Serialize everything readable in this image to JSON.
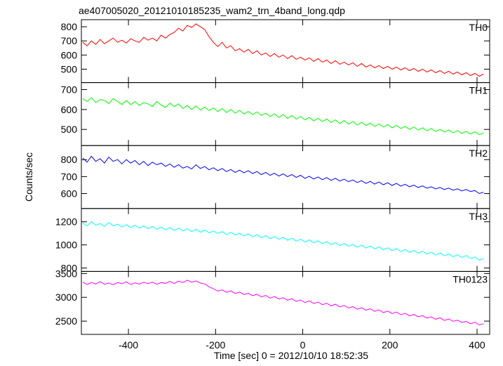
{
  "chart_data": {
    "type": "line",
    "title": "ae407005020_20121010185235_wam2_trn_4band_long.qdp",
    "xlabel": "Time [sec] 0 = 2012/10/10 18:52:35",
    "ylabel": "Counts/sec",
    "xlim": [
      -508,
      429
    ],
    "xticks": [
      -400,
      -200,
      0,
      200,
      400
    ],
    "x": [
      -505,
      -495,
      -485,
      -475,
      -465,
      -455,
      -445,
      -435,
      -425,
      -415,
      -405,
      -395,
      -385,
      -375,
      -365,
      -355,
      -345,
      -335,
      -325,
      -315,
      -305,
      -295,
      -285,
      -275,
      -265,
      -255,
      -245,
      -235,
      -225,
      -215,
      -205,
      -195,
      -185,
      -175,
      -165,
      -155,
      -145,
      -135,
      -125,
      -115,
      -105,
      -95,
      -85,
      -75,
      -65,
      -55,
      -45,
      -35,
      -25,
      -15,
      -5,
      5,
      15,
      25,
      35,
      45,
      55,
      65,
      75,
      85,
      95,
      105,
      115,
      125,
      135,
      145,
      155,
      165,
      175,
      185,
      195,
      205,
      215,
      225,
      235,
      245,
      255,
      265,
      275,
      285,
      295,
      305,
      315,
      325,
      335,
      345,
      355,
      365,
      375,
      385,
      395,
      405,
      415
    ],
    "panels": [
      {
        "name": "TH0",
        "color": "#ff0000",
        "ylim": [
          405,
          850
        ],
        "yticks": [
          500,
          600,
          700,
          800
        ],
        "values": [
          690,
          665,
          700,
          675,
          710,
          680,
          700,
          720,
          690,
          705,
          685,
          715,
          700,
          690,
          725,
          705,
          720,
          700,
          740,
          720,
          745,
          760,
          790,
          770,
          810,
          795,
          820,
          800,
          780,
          730,
          690,
          660,
          690,
          650,
          665,
          630,
          645,
          620,
          640,
          610,
          630,
          600,
          615,
          590,
          610,
          585,
          600,
          575,
          595,
          570,
          585,
          565,
          580,
          555,
          575,
          550,
          565,
          540,
          560,
          535,
          550,
          530,
          545,
          520,
          540,
          515,
          530,
          510,
          525,
          505,
          520,
          500,
          515,
          495,
          510,
          490,
          505,
          485,
          500,
          480,
          495,
          475,
          490,
          470,
          485,
          465,
          480,
          460,
          475,
          455,
          470,
          450,
          465
        ]
      },
      {
        "name": "TH1",
        "color": "#00ff00",
        "ylim": [
          419,
          735
        ],
        "yticks": [
          500,
          600,
          700
        ],
        "values": [
          655,
          640,
          660,
          635,
          650,
          645,
          630,
          655,
          640,
          625,
          645,
          625,
          640,
          620,
          635,
          628,
          615,
          640,
          622,
          610,
          632,
          615,
          628,
          605,
          620,
          600,
          618,
          597,
          612,
          595,
          608,
          590,
          605,
          585,
          600,
          582,
          596,
          578,
          590,
          575,
          588,
          570,
          582,
          565,
          578,
          560,
          575,
          555,
          570,
          552,
          565,
          548,
          560,
          543,
          556,
          540,
          552,
          535,
          548,
          530,
          545,
          527,
          540,
          522,
          536,
          520,
          532,
          515,
          528,
          512,
          525,
          508,
          520,
          505,
          515,
          500,
          512,
          497,
          508,
          493,
          505,
          490,
          500,
          487,
          497,
          483,
          494,
          480,
          490,
          477,
          488,
          474,
          482
        ]
      },
      {
        "name": "TH2",
        "color": "#0000ff",
        "ylim": [
          512,
          883
        ],
        "yticks": [
          600,
          700,
          800
        ],
        "values": [
          810,
          785,
          820,
          790,
          805,
          780,
          815,
          790,
          800,
          775,
          800,
          780,
          795,
          770,
          790,
          765,
          785,
          770,
          780,
          760,
          775,
          755,
          770,
          750,
          760,
          745,
          770,
          748,
          760,
          740,
          752,
          735,
          748,
          730,
          742,
          725,
          738,
          722,
          735,
          718,
          730,
          712,
          725,
          708,
          720,
          703,
          716,
          700,
          712,
          695,
          708,
          690,
          702,
          686,
          698,
          682,
          694,
          678,
          690,
          674,
          685,
          670,
          680,
          665,
          676,
          660,
          672,
          656,
          668,
          652,
          664,
          648,
          660,
          644,
          655,
          640,
          650,
          636,
          645,
          632,
          640,
          628,
          636,
          624,
          632,
          620,
          628,
          616,
          624,
          612,
          618,
          600,
          608
        ]
      },
      {
        "name": "TH3",
        "color": "#00ffff",
        "ylim": [
          770,
          1315
        ],
        "yticks": [
          800,
          1000,
          1200
        ],
        "values": [
          1190,
          1165,
          1200,
          1170,
          1185,
          1160,
          1195,
          1165,
          1180,
          1155,
          1175,
          1150,
          1170,
          1145,
          1165,
          1140,
          1160,
          1135,
          1155,
          1130,
          1150,
          1125,
          1145,
          1120,
          1140,
          1115,
          1135,
          1110,
          1128,
          1105,
          1120,
          1098,
          1115,
          1090,
          1108,
          1085,
          1100,
          1078,
          1095,
          1070,
          1088,
          1062,
          1080,
          1055,
          1072,
          1048,
          1065,
          1040,
          1058,
          1032,
          1050,
          1025,
          1043,
          1018,
          1035,
          1010,
          1028,
          1002,
          1020,
          995,
          1012,
          988,
          1005,
          980,
          998,
          972,
          990,
          965,
          982,
          958,
          975,
          950,
          968,
          942,
          960,
          935,
          952,
          928,
          945,
          920,
          938,
          912,
          930,
          905,
          922,
          898,
          915,
          890,
          908,
          882,
          895,
          868,
          880
        ]
      },
      {
        "name": "TH0123",
        "color": "#ff00ff",
        "ylim": [
          2221,
          3544
        ],
        "yticks": [
          2500,
          3000,
          3500
        ],
        "values": [
          3320,
          3270,
          3310,
          3280,
          3330,
          3275,
          3300,
          3265,
          3310,
          3285,
          3325,
          3270,
          3305,
          3280,
          3315,
          3290,
          3320,
          3275,
          3310,
          3295,
          3335,
          3290,
          3340,
          3310,
          3360,
          3320,
          3345,
          3300,
          3280,
          3220,
          3180,
          3130,
          3155,
          3105,
          3135,
          3080,
          3110,
          3060,
          3085,
          3035,
          3065,
          3010,
          3040,
          2985,
          3015,
          2965,
          2990,
          2940,
          2970,
          2915,
          2945,
          2890,
          2925,
          2870,
          2900,
          2845,
          2875,
          2820,
          2855,
          2800,
          2830,
          2775,
          2805,
          2750,
          2780,
          2730,
          2760,
          2705,
          2735,
          2680,
          2710,
          2660,
          2690,
          2635,
          2665,
          2610,
          2640,
          2590,
          2615,
          2565,
          2590,
          2540,
          2570,
          2515,
          2545,
          2495,
          2520,
          2470,
          2495,
          2445,
          2475,
          2420,
          2445
        ]
      }
    ]
  }
}
